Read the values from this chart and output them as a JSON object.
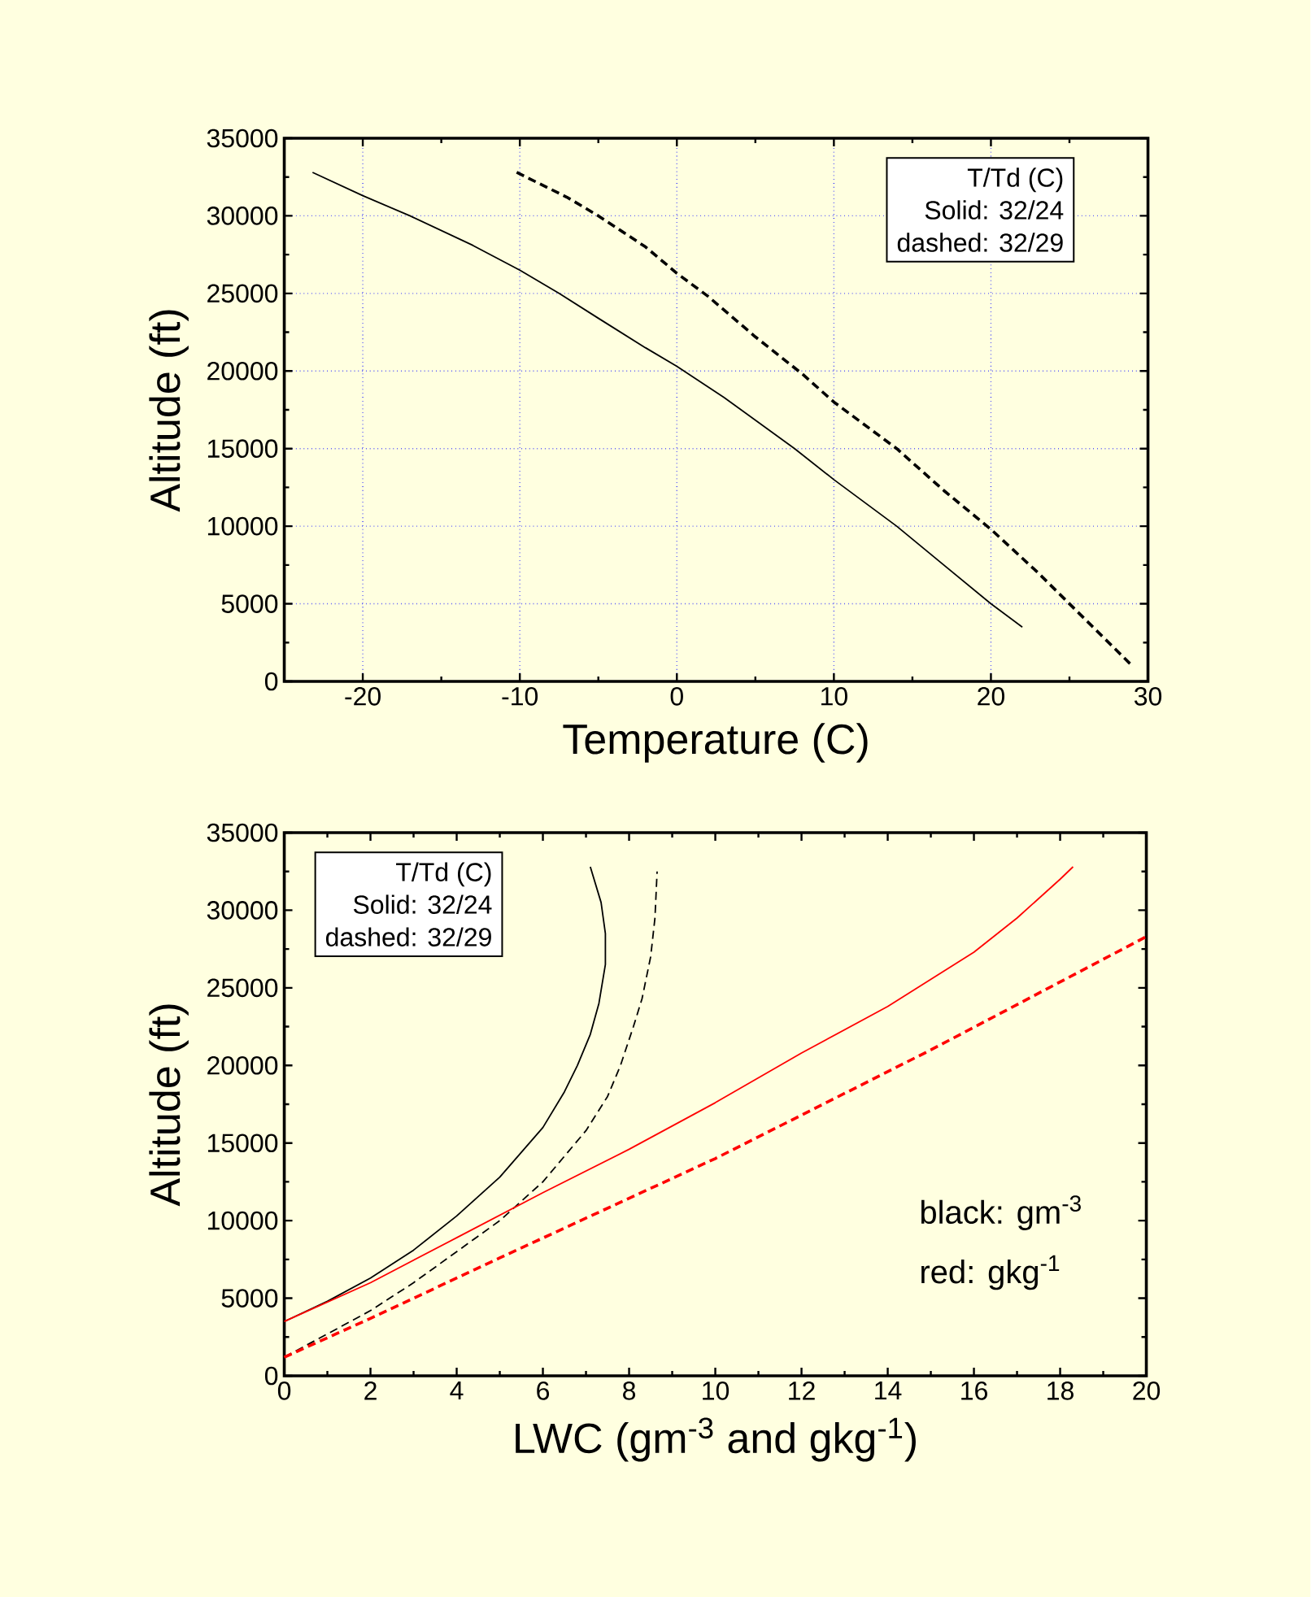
{
  "chart_data": [
    {
      "type": "line",
      "xlabel": "Temperature (C)",
      "ylabel": "Altitude (ft)",
      "xlim": [
        -25,
        30
      ],
      "xticks": [
        -20,
        -10,
        0,
        10,
        20,
        30
      ],
      "ylim": [
        0,
        35000
      ],
      "yticks": [
        0,
        5000,
        10000,
        15000,
        20000,
        25000,
        30000,
        35000
      ],
      "grid": true,
      "annotations": [
        "T/Td (C)",
        "Solid: 32/24",
        "dashed: 32/29"
      ],
      "series": [
        {
          "color": "#000000",
          "line_style": "solid",
          "x": [
            -23.2,
            -20,
            -17,
            -13,
            -10,
            -7.5,
            -5,
            -2,
            0,
            3,
            7.5,
            10,
            14,
            17,
            20,
            22
          ],
          "values": [
            32800,
            31300,
            30000,
            28100,
            26500,
            25000,
            23400,
            21500,
            20300,
            18300,
            15000,
            13000,
            10000,
            7500,
            5000,
            3500
          ]
        },
        {
          "color": "#000000",
          "line_style": "dashed",
          "x": [
            -10.2,
            -7,
            -5,
            -2,
            0,
            2,
            5,
            8,
            10,
            14,
            17,
            20,
            23,
            25,
            27,
            29
          ],
          "values": [
            32800,
            31200,
            30000,
            28000,
            26300,
            24800,
            22200,
            19800,
            18000,
            15000,
            12300,
            9800,
            7000,
            5000,
            3000,
            1000
          ]
        }
      ]
    },
    {
      "type": "line",
      "xlabel": "LWC (gm$^{-3}$ and gkg$^{-1}$)",
      "ylabel": "Altitude (ft)",
      "xlim": [
        0,
        20
      ],
      "xticks": [
        0,
        2,
        4,
        6,
        8,
        10,
        12,
        14,
        16,
        18,
        20
      ],
      "ylim": [
        0,
        35000
      ],
      "yticks": [
        0,
        5000,
        10000,
        15000,
        20000,
        25000,
        30000,
        35000
      ],
      "annotations": [
        "T/Td (C)",
        "Solid: 32/24",
        "dashed: 32/29",
        "black: gm$^{-3}$",
        "red: gkg$^{-1}$"
      ],
      "series": [
        {
          "color": "#000000",
          "line_style": "solid",
          "x": [
            0,
            1,
            2,
            3,
            4,
            5,
            6,
            6.5,
            6.8,
            7.1,
            7.3,
            7.45,
            7.45,
            7.35,
            7.1
          ],
          "values": [
            3500,
            4800,
            6300,
            8100,
            10300,
            12800,
            16000,
            18300,
            20000,
            22000,
            24000,
            26500,
            28500,
            30500,
            32800
          ]
        },
        {
          "color": "#000000",
          "line_style": "dashed",
          "x": [
            0,
            1,
            2,
            3,
            4,
            5,
            6,
            7,
            7.5,
            7.8,
            8.1,
            8.3,
            8.5,
            8.6,
            8.65
          ],
          "values": [
            1200,
            2700,
            4200,
            6000,
            8000,
            10000,
            12500,
            15800,
            18000,
            20000,
            22500,
            24300,
            27000,
            29500,
            32500
          ]
        },
        {
          "color": "#ff0000",
          "line_style": "solid",
          "x": [
            0,
            2,
            4,
            6,
            8,
            10,
            12,
            14,
            16,
            17,
            18,
            18.3
          ],
          "values": [
            3500,
            6000,
            8900,
            11800,
            14600,
            17600,
            20800,
            23800,
            27300,
            29500,
            32000,
            32800
          ]
        },
        {
          "color": "#ff0000",
          "line_style": "dashed",
          "x": [
            0,
            2,
            5,
            10,
            15,
            20
          ],
          "values": [
            1200,
            3700,
            7600,
            14000,
            21000,
            28300
          ]
        }
      ]
    }
  ]
}
